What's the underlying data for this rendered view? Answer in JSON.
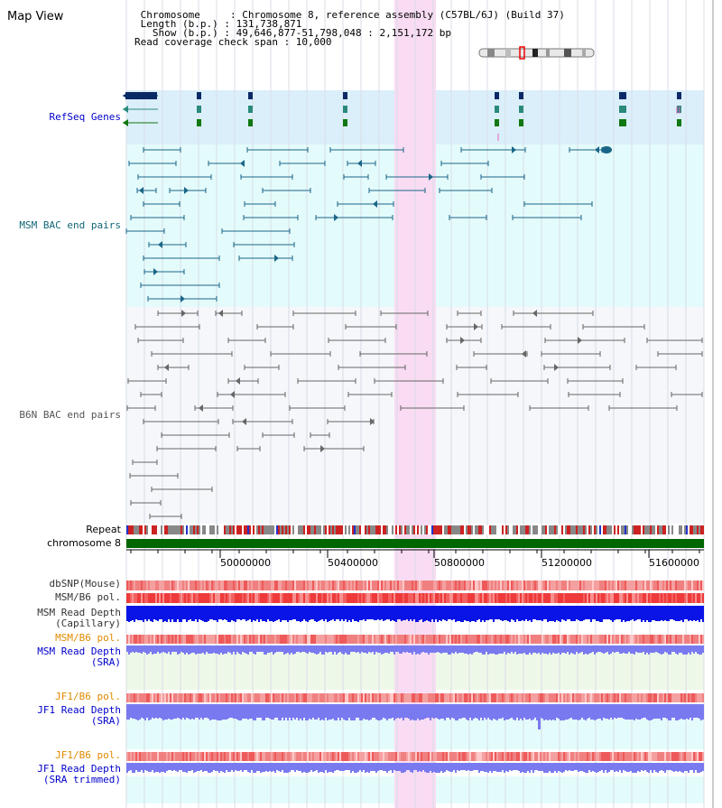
{
  "header": {
    "title": "Map View",
    "info_lines": [
      " Chromosome     : Chromosome 8, reference assembly (C57BL/6J) (Build 37)",
      " Length (b.p.) : 131,738,871",
      "   Show (b.p.) : 49,646,877-51,798,048 : 2,151,172 bp",
      "Read coverage check span : 10,000"
    ]
  },
  "tracks": {
    "refseq": "RefSeq Genes",
    "msm_bac": "MSM BAC end pairs",
    "b6n_bac": "B6N BAC end pairs",
    "repeat": "Repeat",
    "chromosome": "chromosome 8",
    "dbsnp": "dbSNP(Mouse)",
    "msm_b6_pol": "MSM/B6 pol.",
    "msm_depth_cap_1": "MSM Read Depth",
    "msm_depth_cap_2": "(Capillary)",
    "msm_b6_pol_2": "MSM/B6 pol.",
    "msm_depth_sra_1": "MSM Read Depth",
    "msm_depth_sra_2": "(SRA)",
    "jf1_b6_pol": "JF1/B6 pol.",
    "jf1_depth_sra_1": "JF1 Read Depth",
    "jf1_depth_sra_2": "(SRA)",
    "jf1_b6_pol_2": "JF1/B6 pol.",
    "jf1_depth_trim_1": "JF1 Read Depth",
    "jf1_depth_trim_2": "(SRA trimmed)"
  },
  "ruler": {
    "tick_labels": [
      "50000000",
      "50400000",
      "50800000",
      "51200000",
      "51600000"
    ]
  },
  "colors": {
    "refseq_bg": "#dbeffa",
    "bac_bg": "#e4fbfb",
    "b6n_bg": "#f5f7fa",
    "highlight": "#f9dcf3",
    "chromosome": "#006600",
    "msm_feature": "#1a6688",
    "b6n_feature": "#666666",
    "depth_cap": "#0a14e6",
    "depth_sra": "#7a7af0",
    "pol_label": "#e08a00",
    "track_label_blue": "#0000cc",
    "track_label_teal": "#116677"
  }
}
